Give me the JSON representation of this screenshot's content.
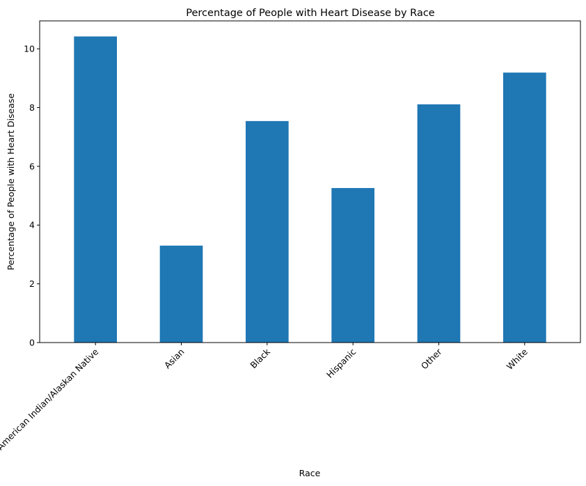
{
  "chart_data": {
    "type": "bar",
    "title": "Percentage of People with Heart Disease by Race",
    "xlabel": "Race",
    "ylabel": "Percentage of People with Heart Disease",
    "categories": [
      "American Indian/Alaskan Native",
      "Asian",
      "Black",
      "Hispanic",
      "Other",
      "White"
    ],
    "values": [
      10.42,
      3.3,
      7.54,
      5.26,
      8.11,
      9.19
    ],
    "yticks": [
      0,
      2,
      4,
      6,
      8,
      10
    ],
    "ytick_labels": [
      "0",
      "2",
      "4",
      "6",
      "8",
      "10"
    ],
    "ylim": [
      0,
      10.95
    ],
    "grid": false,
    "legend": "none",
    "bar_color": "#1f77b4",
    "x_tick_rotation_deg": 45
  }
}
